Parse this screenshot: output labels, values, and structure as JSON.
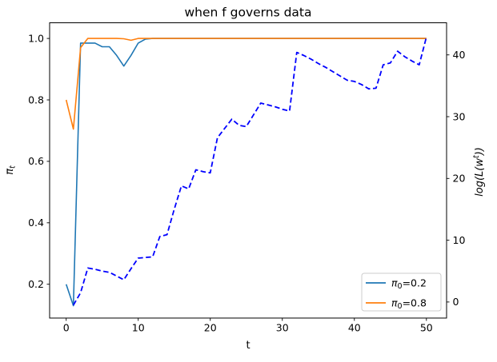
{
  "title": "when f governs data",
  "xlabel": "t",
  "ylabel_left": {
    "base": "π",
    "sub": "t"
  },
  "ylabel_right": {
    "pre": "log(L(w",
    "sup": "t",
    "post": "))"
  },
  "legend": {
    "position": "lower right",
    "items": [
      {
        "sym": "π",
        "sub": "0",
        "rest": "=0.2",
        "color": "#1f77b4"
      },
      {
        "sym": "π",
        "sub": "0",
        "rest": "=0.8",
        "color": "#ff7f0e"
      }
    ]
  },
  "colors": {
    "pi02_line": "#1f77b4",
    "pi08_line": "#ff7f0e",
    "loglik_line": "#0000ff",
    "spine": "#000000",
    "legend_border": "#cccccc"
  },
  "chart_data": {
    "type": "line",
    "title": "when f governs data",
    "xlabel": "t",
    "ylabel_left": "π_t",
    "ylabel_right": "log(L(w^t))",
    "grid": false,
    "legend_position": "lower right",
    "x_axis": {
      "range": [
        -2.3,
        52.8
      ],
      "ticks": [
        0,
        10,
        20,
        30,
        40,
        50
      ],
      "tick_labels": [
        "0",
        "10",
        "20",
        "30",
        "40",
        "50"
      ]
    },
    "y_axis_left": {
      "range": [
        0.09,
        1.051
      ],
      "ticks": [
        0.2,
        0.4,
        0.6,
        0.8,
        1.0
      ],
      "tick_labels": [
        "0.2",
        "0.4",
        "0.6",
        "0.8",
        "1.0"
      ]
    },
    "y_axis_right": {
      "range": [
        -2.6,
        45.2
      ],
      "ticks": [
        0,
        10,
        20,
        30,
        40
      ],
      "tick_labels": [
        "0",
        "10",
        "20",
        "30",
        "40"
      ]
    },
    "series": [
      {
        "name": "π₀=0.2",
        "axis": "left",
        "color": "#1f77b4",
        "style": "solid",
        "x": [
          0,
          1,
          2,
          3,
          4,
          5,
          6,
          7,
          8,
          9,
          10,
          11,
          12,
          13,
          14,
          15,
          16,
          17,
          18,
          19,
          20,
          21,
          22,
          23,
          24,
          25,
          26,
          27,
          28,
          29,
          30,
          31,
          32,
          33,
          34,
          35,
          36,
          37,
          38,
          39,
          40,
          41,
          42,
          43,
          44,
          45,
          46,
          47,
          48,
          49,
          50
        ],
        "y": [
          0.2,
          0.13,
          0.985,
          0.985,
          0.985,
          0.973,
          0.973,
          0.945,
          0.91,
          0.945,
          0.985,
          0.998,
          1.0,
          1.0,
          1.0,
          1.0,
          1.0,
          1.0,
          1.0,
          1.0,
          1.0,
          1.0,
          1.0,
          1.0,
          1.0,
          1.0,
          1.0,
          1.0,
          1.0,
          1.0,
          1.0,
          1.0,
          1.0,
          1.0,
          1.0,
          1.0,
          1.0,
          1.0,
          1.0,
          1.0,
          1.0,
          1.0,
          1.0,
          1.0,
          1.0,
          1.0,
          1.0,
          1.0,
          1.0,
          1.0,
          1.0
        ]
      },
      {
        "name": "π₀=0.8",
        "axis": "left",
        "color": "#ff7f0e",
        "style": "solid",
        "x": [
          0,
          1,
          2,
          3,
          4,
          5,
          6,
          7,
          8,
          9,
          10,
          11,
          12,
          13,
          14,
          15,
          16,
          17,
          18,
          19,
          20,
          21,
          22,
          23,
          24,
          25,
          26,
          27,
          28,
          29,
          30,
          31,
          32,
          33,
          34,
          35,
          36,
          37,
          38,
          39,
          40,
          41,
          42,
          43,
          44,
          45,
          46,
          47,
          48,
          49,
          50
        ],
        "y": [
          0.8,
          0.705,
          0.97,
          1.0,
          1.0,
          1.0,
          1.0,
          1.0,
          0.999,
          0.994,
          1.0,
          1.0,
          1.0,
          1.0,
          1.0,
          1.0,
          1.0,
          1.0,
          1.0,
          1.0,
          1.0,
          1.0,
          1.0,
          1.0,
          1.0,
          1.0,
          1.0,
          1.0,
          1.0,
          1.0,
          1.0,
          1.0,
          1.0,
          1.0,
          1.0,
          1.0,
          1.0,
          1.0,
          1.0,
          1.0,
          1.0,
          1.0,
          1.0,
          1.0,
          1.0,
          1.0,
          1.0,
          1.0,
          1.0,
          1.0,
          1.0
        ]
      },
      {
        "name": "log(L(w^t))",
        "axis": "right",
        "color": "#0000ff",
        "style": "dashed",
        "x": [
          1,
          2,
          3,
          4,
          5,
          6,
          7,
          8,
          9,
          10,
          11,
          12,
          13,
          14,
          15,
          16,
          17,
          18,
          19,
          20,
          21,
          22,
          23,
          24,
          25,
          26,
          27,
          28,
          29,
          30,
          31,
          32,
          33,
          34,
          35,
          36,
          37,
          38,
          39,
          40,
          41,
          42,
          43,
          44,
          45,
          46,
          47,
          48,
          49,
          50
        ],
        "y": [
          -0.5,
          1.5,
          5.5,
          5.3,
          5.0,
          4.8,
          4.2,
          3.6,
          5.4,
          7.1,
          7.2,
          7.3,
          10.6,
          10.9,
          15.0,
          18.8,
          18.3,
          21.4,
          21.1,
          20.9,
          26.6,
          28.1,
          29.6,
          28.6,
          28.4,
          30.3,
          32.2,
          31.9,
          31.6,
          31.2,
          30.9,
          40.4,
          39.9,
          39.3,
          38.6,
          38.0,
          37.3,
          36.6,
          35.9,
          35.7,
          35.2,
          34.5,
          34.6,
          38.4,
          38.7,
          40.6,
          39.7,
          39.0,
          38.4,
          42.9
        ]
      }
    ]
  }
}
